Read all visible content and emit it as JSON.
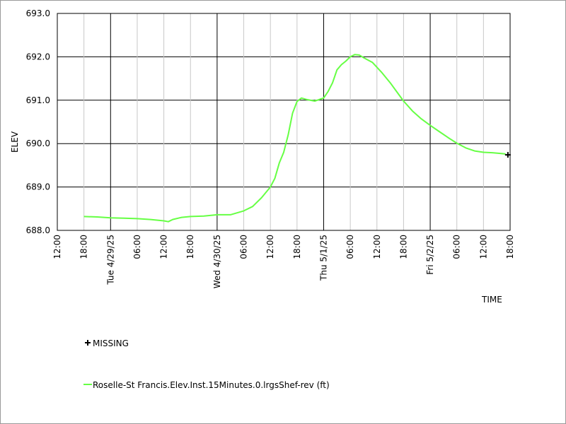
{
  "chart_data": {
    "type": "line",
    "ylabel": "ELEV",
    "xlabel": "TIME",
    "ylim": [
      688.0,
      693.0
    ],
    "yticks": [
      {
        "value": 688.0,
        "label": "688.0"
      },
      {
        "value": 689.0,
        "label": "689.0"
      },
      {
        "value": 690.0,
        "label": "690.0"
      },
      {
        "value": 691.0,
        "label": "691.0"
      },
      {
        "value": 692.0,
        "label": "692.0"
      },
      {
        "value": 693.0,
        "label": "693.0"
      }
    ],
    "xlim": [
      "2025-04-28 12:00",
      "2025-05-02 18:00"
    ],
    "xticks": [
      {
        "time": "2025-04-28 12:00",
        "label": "12:00",
        "major": true
      },
      {
        "time": "2025-04-28 18:00",
        "label": "18:00",
        "major": false
      },
      {
        "time": "2025-04-29 00:00",
        "label": "Tue 4/29/25",
        "major": true
      },
      {
        "time": "2025-04-29 06:00",
        "label": "06:00",
        "major": false
      },
      {
        "time": "2025-04-29 12:00",
        "label": "12:00",
        "major": false
      },
      {
        "time": "2025-04-29 18:00",
        "label": "18:00",
        "major": false
      },
      {
        "time": "2025-04-30 00:00",
        "label": "Wed 4/30/25",
        "major": true
      },
      {
        "time": "2025-04-30 06:00",
        "label": "06:00",
        "major": false
      },
      {
        "time": "2025-04-30 12:00",
        "label": "12:00",
        "major": false
      },
      {
        "time": "2025-04-30 18:00",
        "label": "18:00",
        "major": false
      },
      {
        "time": "2025-05-01 00:00",
        "label": "Thu 5/1/25",
        "major": true
      },
      {
        "time": "2025-05-01 06:00",
        "label": "06:00",
        "major": false
      },
      {
        "time": "2025-05-01 12:00",
        "label": "12:00",
        "major": false
      },
      {
        "time": "2025-05-01 18:00",
        "label": "18:00",
        "major": false
      },
      {
        "time": "2025-05-02 00:00",
        "label": "Fri 5/2/25",
        "major": true
      },
      {
        "time": "2025-05-02 06:00",
        "label": "06:00",
        "major": false
      },
      {
        "time": "2025-05-02 12:00",
        "label": "12:00",
        "major": false
      },
      {
        "time": "2025-05-02 18:00",
        "label": "18:00",
        "major": true
      }
    ],
    "series": [
      {
        "name": "Roselle-St Francis.Elev.Inst.15Minutes.0.lrgsShef-rev (ft)",
        "color": "#66ff44",
        "points": [
          [
            "2025-04-28 18:00",
            688.32
          ],
          [
            "2025-04-28 21:00",
            688.31
          ],
          [
            "2025-04-29 00:00",
            688.29
          ],
          [
            "2025-04-29 03:00",
            688.28
          ],
          [
            "2025-04-29 06:00",
            688.27
          ],
          [
            "2025-04-29 09:00",
            688.25
          ],
          [
            "2025-04-29 12:00",
            688.22
          ],
          [
            "2025-04-29 13:00",
            688.2
          ],
          [
            "2025-04-29 14:00",
            688.25
          ],
          [
            "2025-04-29 16:00",
            688.3
          ],
          [
            "2025-04-29 18:00",
            688.32
          ],
          [
            "2025-04-29 21:00",
            688.33
          ],
          [
            "2025-04-30 00:00",
            688.36
          ],
          [
            "2025-04-30 03:00",
            688.36
          ],
          [
            "2025-04-30 06:00",
            688.45
          ],
          [
            "2025-04-30 08:00",
            688.55
          ],
          [
            "2025-04-30 10:00",
            688.75
          ],
          [
            "2025-04-30 12:00",
            689.0
          ],
          [
            "2025-04-30 13:00",
            689.2
          ],
          [
            "2025-04-30 14:00",
            689.55
          ],
          [
            "2025-04-30 15:00",
            689.8
          ],
          [
            "2025-04-30 16:00",
            690.2
          ],
          [
            "2025-04-30 17:00",
            690.7
          ],
          [
            "2025-04-30 18:00",
            690.97
          ],
          [
            "2025-04-30 19:00",
            691.05
          ],
          [
            "2025-04-30 20:00",
            691.02
          ],
          [
            "2025-04-30 22:00",
            690.98
          ],
          [
            "2025-05-01 00:00",
            691.05
          ],
          [
            "2025-05-01 01:00",
            691.2
          ],
          [
            "2025-05-01 02:00",
            691.4
          ],
          [
            "2025-05-01 03:00",
            691.7
          ],
          [
            "2025-05-01 04:00",
            691.82
          ],
          [
            "2025-05-01 05:00",
            691.9
          ],
          [
            "2025-05-01 06:00",
            692.0
          ],
          [
            "2025-05-01 07:00",
            692.05
          ],
          [
            "2025-05-01 08:00",
            692.04
          ],
          [
            "2025-05-01 09:00",
            691.98
          ],
          [
            "2025-05-01 11:00",
            691.87
          ],
          [
            "2025-05-01 13:00",
            691.65
          ],
          [
            "2025-05-01 15:00",
            691.4
          ],
          [
            "2025-05-01 17:00",
            691.12
          ],
          [
            "2025-05-01 18:00",
            690.98
          ],
          [
            "2025-05-01 20:00",
            690.75
          ],
          [
            "2025-05-01 22:00",
            690.57
          ],
          [
            "2025-05-02 00:00",
            690.42
          ],
          [
            "2025-05-02 02:00",
            690.28
          ],
          [
            "2025-05-02 04:00",
            690.14
          ],
          [
            "2025-05-02 06:00",
            690.01
          ],
          [
            "2025-05-02 08:00",
            689.9
          ],
          [
            "2025-05-02 10:00",
            689.83
          ],
          [
            "2025-05-02 12:00",
            689.8
          ],
          [
            "2025-05-02 14:00",
            689.79
          ],
          [
            "2025-05-02 16:00",
            689.77
          ],
          [
            "2025-05-02 17:00",
            689.76
          ]
        ]
      }
    ],
    "missing": {
      "name": "MISSING",
      "color": "#000000",
      "points": [
        [
          "2025-05-02 17:30",
          689.74
        ]
      ]
    },
    "grid": true,
    "legend_position": "bottom-left"
  }
}
